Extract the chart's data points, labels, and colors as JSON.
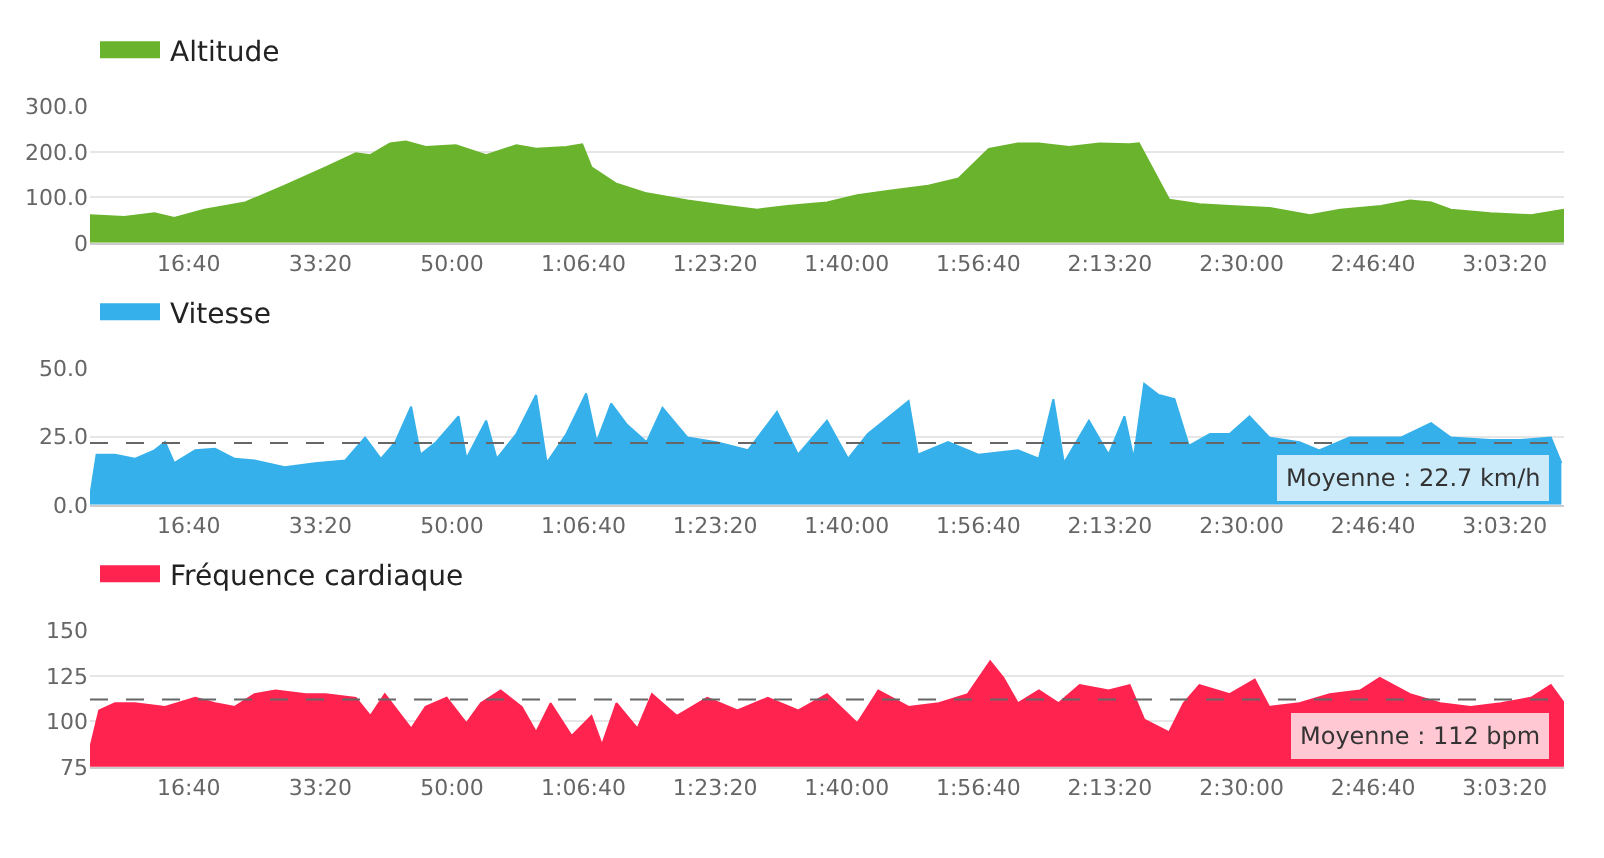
{
  "chart_data": [
    {
      "type": "area",
      "legend": "top left",
      "grid": "y",
      "xlim": [
        250,
        11450
      ],
      "ylim": [
        0,
        300
      ],
      "xticks": [
        {
          "value": 1000,
          "label": "16:40"
        },
        {
          "value": 2000,
          "label": "33:20"
        },
        {
          "value": 3000,
          "label": "50:00"
        },
        {
          "value": 4000,
          "label": "1:06:40"
        },
        {
          "value": 5000,
          "label": "1:23:20"
        },
        {
          "value": 6000,
          "label": "1:40:00"
        },
        {
          "value": 7000,
          "label": "1:56:40"
        },
        {
          "value": 8000,
          "label": "2:13:20"
        },
        {
          "value": 9000,
          "label": "2:30:00"
        },
        {
          "value": 10000,
          "label": "2:46:40"
        },
        {
          "value": 11000,
          "label": "3:03:20"
        }
      ],
      "yticks": [
        0,
        {
          "value": 100,
          "label": "100.0"
        },
        {
          "value": 200,
          "label": "200.0"
        },
        {
          "value": 300,
          "label": "300.0"
        }
      ],
      "series": [
        {
          "name": "Altitude",
          "color": "#6ab42d",
          "x": [
            250,
            510,
            740,
            890,
            1120,
            1430,
            1730,
            2040,
            2270,
            2380,
            2530,
            2650,
            2800,
            3030,
            3260,
            3490,
            3640,
            3870,
            3990,
            4060,
            4250,
            4480,
            4790,
            5090,
            5320,
            5550,
            5850,
            6080,
            6310,
            6620,
            6850,
            7080,
            7300,
            7460,
            7690,
            7920,
            8150,
            8220,
            8450,
            8680,
            8910,
            9210,
            9520,
            9750,
            10060,
            10280,
            10440,
            10590,
            10890,
            11200,
            11450
          ],
          "values": [
            61,
            57,
            65,
            55,
            73,
            89,
            126,
            166,
            197,
            193,
            219,
            223,
            211,
            215,
            193,
            215,
            207,
            211,
            217,
            166,
            130,
            109,
            93,
            81,
            73,
            81,
            89,
            105,
            114,
            126,
            142,
            207,
            219,
            219,
            211,
            219,
            217,
            219,
            95,
            85,
            81,
            77,
            61,
            73,
            81,
            93,
            89,
            73,
            65,
            61,
            73
          ]
        }
      ]
    },
    {
      "type": "area",
      "legend": "top left",
      "grid": "y",
      "xlim": [
        250,
        11450
      ],
      "ylim": [
        0,
        50
      ],
      "xticks": [
        {
          "value": 1000,
          "label": "16:40"
        },
        {
          "value": 2000,
          "label": "33:20"
        },
        {
          "value": 3000,
          "label": "50:00"
        },
        {
          "value": 4000,
          "label": "1:06:40"
        },
        {
          "value": 5000,
          "label": "1:23:20"
        },
        {
          "value": 6000,
          "label": "1:40:00"
        },
        {
          "value": 7000,
          "label": "1:56:40"
        },
        {
          "value": 8000,
          "label": "2:13:20"
        },
        {
          "value": 9000,
          "label": "2:30:00"
        },
        {
          "value": 10000,
          "label": "2:46:40"
        },
        {
          "value": 11000,
          "label": "3:03:20"
        }
      ],
      "yticks": [
        {
          "value": 0,
          "label": "0.0"
        },
        {
          "value": 25,
          "label": "25.0"
        },
        {
          "value": 50,
          "label": "50.0"
        }
      ],
      "ref_lines": [
        {
          "axis": "y",
          "value": 22.7,
          "label": "Moyenne : 22.7 km/h",
          "color": "#666666",
          "line_style": "dashed"
        }
      ],
      "series": [
        {
          "name": "Vitesse",
          "color": "#36b0ea",
          "x": [
            250,
            300,
            440,
            590,
            740,
            820,
            890,
            1050,
            1200,
            1350,
            1500,
            1730,
            1960,
            2190,
            2340,
            2460,
            2570,
            2690,
            2760,
            2880,
            3050,
            3110,
            3260,
            3340,
            3490,
            3640,
            3720,
            3870,
            4020,
            4100,
            4210,
            4330,
            4480,
            4600,
            4790,
            5010,
            5250,
            5470,
            5630,
            5850,
            6010,
            6160,
            6470,
            6540,
            6770,
            7000,
            7300,
            7460,
            7570,
            7650,
            7840,
            7990,
            8110,
            8180,
            8260,
            8370,
            8490,
            8600,
            8760,
            8910,
            9060,
            9210,
            9440,
            9590,
            9820,
            10050,
            10210,
            10440,
            10590,
            10890,
            11120,
            11350,
            11430
          ],
          "values": [
            2.8,
            18.4,
            18.4,
            16.9,
            20.0,
            23.0,
            15.3,
            20.0,
            20.6,
            16.9,
            16.3,
            13.8,
            15.3,
            16.3,
            24.7,
            16.9,
            23.0,
            36.0,
            18.4,
            23.0,
            32.5,
            16.9,
            30.9,
            16.9,
            26.0,
            40.3,
            15.3,
            26.0,
            40.9,
            23.0,
            37.2,
            29.4,
            23.0,
            35.6,
            24.7,
            23.0,
            20.0,
            34.1,
            18.4,
            30.9,
            16.9,
            26.0,
            38.1,
            18.4,
            23.0,
            18.4,
            20.0,
            16.9,
            38.8,
            15.3,
            30.9,
            18.4,
            32.5,
            16.9,
            44.4,
            40.3,
            38.8,
            21.6,
            26.0,
            26.0,
            32.5,
            24.7,
            23.0,
            20.0,
            24.7,
            24.7,
            24.7,
            30.0,
            24.7,
            23.8,
            23.8,
            24.7,
            15.3
          ]
        }
      ]
    },
    {
      "type": "area",
      "legend": "top left",
      "grid": "y",
      "xlim": [
        250,
        11450
      ],
      "ylim": [
        75,
        150
      ],
      "xticks": [
        {
          "value": 1000,
          "label": "16:40"
        },
        {
          "value": 2000,
          "label": "33:20"
        },
        {
          "value": 3000,
          "label": "50:00"
        },
        {
          "value": 4000,
          "label": "1:06:40"
        },
        {
          "value": 5000,
          "label": "1:23:20"
        },
        {
          "value": 6000,
          "label": "1:40:00"
        },
        {
          "value": 7000,
          "label": "1:56:40"
        },
        {
          "value": 8000,
          "label": "2:13:20"
        },
        {
          "value": 9000,
          "label": "2:30:00"
        },
        {
          "value": 10000,
          "label": "2:46:40"
        },
        {
          "value": 11000,
          "label": "3:03:20"
        }
      ],
      "yticks": [
        75,
        100,
        125,
        150
      ],
      "ref_lines": [
        {
          "axis": "y",
          "value": 112,
          "label": "Moyenne : 112 bpm",
          "color": "#666666",
          "line_style": "dashed"
        }
      ],
      "series": [
        {
          "name": "Fréquence cardiaque",
          "color": "#ff2450",
          "x": [
            250,
            320,
            440,
            590,
            820,
            1050,
            1200,
            1350,
            1500,
            1660,
            1890,
            2040,
            2270,
            2380,
            2490,
            2690,
            2800,
            2960,
            3110,
            3220,
            3370,
            3530,
            3640,
            3750,
            3910,
            4060,
            4140,
            4250,
            4410,
            4520,
            4710,
            4940,
            5170,
            5400,
            5630,
            5850,
            6080,
            6240,
            6470,
            6700,
            6920,
            7090,
            7190,
            7300,
            7460,
            7610,
            7770,
            7990,
            8150,
            8260,
            8450,
            8560,
            8680,
            8910,
            9100,
            9210,
            9440,
            9670,
            9900,
            10050,
            10280,
            10510,
            10740,
            10970,
            11200,
            11350,
            11450
          ],
          "values": [
            85,
            106,
            110,
            110,
            108,
            113,
            110,
            108,
            115,
            117,
            115,
            115,
            113,
            103,
            115,
            96,
            108,
            113,
            99,
            110,
            117,
            108,
            94,
            110,
            92,
            103,
            87,
            110,
            96,
            115,
            103,
            113,
            106,
            113,
            106,
            115,
            99,
            117,
            108,
            110,
            115,
            133,
            124,
            110,
            117,
            110,
            120,
            117,
            120,
            101,
            94,
            110,
            120,
            115,
            123,
            108,
            110,
            115,
            117,
            124,
            115,
            110,
            108,
            110,
            113,
            120,
            110
          ]
        }
      ]
    }
  ]
}
